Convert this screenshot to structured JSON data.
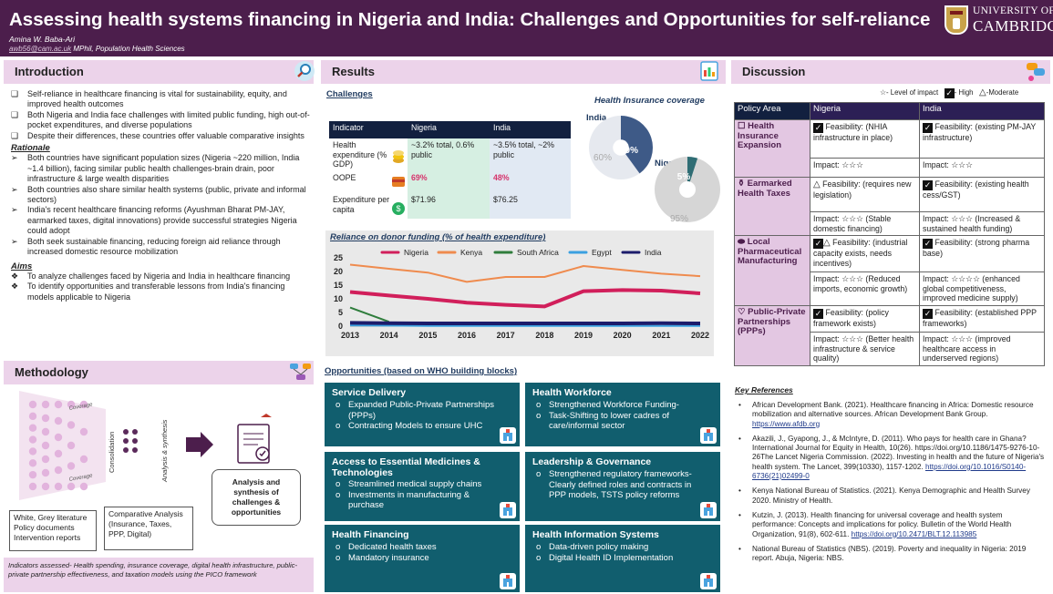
{
  "header": {
    "title": "Assessing health systems financing in Nigeria and India: Challenges and Opportunities for self-reliance",
    "author": "Amina W. Baba-Ari",
    "email": "awb56@cam.ac.uk",
    "affiliation": "MPhil, Population Health Sciences",
    "logo_line1": "UNIVERSITY OF",
    "logo_line2": "CAMBRIDGE"
  },
  "introduction": {
    "heading": "Introduction",
    "icon": "magnifier-icon",
    "bullets": [
      "Self-reliance in healthcare financing is vital for sustainability, equity, and improved health outcomes",
      "Both Nigeria and India face challenges with limited public funding, high out-of-pocket expenditures, and diverse populations",
      "Despite their differences, these countries offer valuable comparative insights"
    ],
    "rationale_heading": "Rationale",
    "rationale": [
      "Both countries have significant population sizes (Nigeria ~220 million, India ~1.4 billion), facing similar public health challenges-brain drain, poor infrastructure & large wealth disparities",
      "Both countries also share similar health systems (public, private and informal sectors)",
      "India's recent healthcare financing reforms (Ayushman Bharat PM-JAY, earmarked taxes, digital innovations) provide successful strategies Nigeria could adopt",
      "Both seek sustainable financing, reducing foreign aid reliance through increased domestic resource mobilization"
    ],
    "aims_heading": "Aims",
    "aims": [
      "To analyze challenges faced by Nigeria and India in healthcare financing",
      "To identify opportunities and transferable lessons from India's financing models applicable to Nigeria"
    ]
  },
  "methodology": {
    "heading": "Methodology",
    "coverage": "Coverage",
    "consolidation": "Consolidation",
    "analysis_synthesis": "Analysis & synthesis",
    "sources_box": [
      "White, Grey literature",
      "Policy documents",
      "Intervention reports"
    ],
    "comparative_box": "Comparative Analysis (Insurance, Taxes, PPP, Digital)",
    "output_box": "Analysis and synthesis of challenges & opportunities",
    "footer": "Indicators assessed- Health spending, insurance coverage, digital health infrastructure, public-private partnership effectiveness, and taxation models using the PICO framework"
  },
  "results": {
    "heading": "Results",
    "challenges_heading": "Challenges",
    "table": {
      "headers": [
        "Indicator",
        "Nigeria",
        "India"
      ],
      "rows": [
        {
          "indicator": "Health expenditure (% GDP)",
          "nigeria": "~3.2% total, 0.6% public",
          "india": "~3.5% total, ~2% public"
        },
        {
          "indicator": "OOPE",
          "nigeria": "69%",
          "india": "48%"
        },
        {
          "indicator": "Expenditure per capita",
          "nigeria": "$71.96",
          "india": "$76.25"
        }
      ],
      "colors": {
        "header": "#12203f",
        "nigeria": "#d6efe2",
        "india": "#e1e9f3",
        "oope": "#d6336c"
      }
    },
    "insurance": {
      "title": "Health Insurance coverage",
      "india_label": "India",
      "india_covered": "40%",
      "india_uncovered": "60%",
      "india_fraction": 0.4,
      "nigeria_label": "Nigeria",
      "nigeria_covered": "5%",
      "nigeria_uncovered": "95%",
      "nigeria_fraction": 0.05
    },
    "opportunities_heading": "Opportunities (based on WHO building blocks)",
    "opportunities": [
      {
        "title": "Service Delivery",
        "items": [
          "Expanded Public-Private Partnerships (PPPs)",
          "Contracting Models to ensure UHC"
        ],
        "icon": "hospital-icon"
      },
      {
        "title": "Health Workforce",
        "items": [
          "Strengthened Workforce Funding-",
          "Task-Shifting to lower cadres of care/informal sector"
        ],
        "icon": "doctor-icon"
      },
      {
        "title": "Access to Essential Medicines & Technologies",
        "items": [
          "Streamlined medical supply chains",
          "Investments in manufacturing & purchase"
        ],
        "icon": "pills-icon"
      },
      {
        "title": "Leadership & Governance",
        "items": [
          "Strengthened regulatory frameworks- Clearly defined roles and contracts in PPP models, TSTS policy reforms"
        ],
        "icon": "government-icon"
      },
      {
        "title": "Health Financing",
        "items": [
          "Dedicated health taxes",
          "Mandatory insurance"
        ],
        "icon": "finance-icon"
      },
      {
        "title": "Health Information Systems",
        "items": [
          "Data-driven policy making",
          "Digital Health ID Implementation"
        ],
        "icon": "monitor-icon"
      }
    ]
  },
  "chart_data": {
    "type": "line",
    "title": "Reliance on donor funding (% of health expenditure)",
    "x": [
      2013,
      2014,
      2015,
      2016,
      2017,
      2018,
      2019,
      2020,
      2021,
      2022
    ],
    "ylim": [
      0,
      25
    ],
    "yticks": [
      0,
      5,
      10,
      15,
      20,
      25
    ],
    "grid": false,
    "legend": "top",
    "series": [
      {
        "name": "Nigeria",
        "color": "#d11f5b",
        "values": [
          12.5,
          11.2,
          10,
          8.6,
          7.8,
          7.2,
          12.8,
          13.2,
          13,
          12
        ]
      },
      {
        "name": "Kenya",
        "color": "#ef8b4e",
        "values": [
          22.5,
          21,
          19.6,
          16.2,
          18,
          18,
          22,
          20.6,
          19.2,
          18.3
        ]
      },
      {
        "name": "South Africa",
        "color": "#2f7d3c",
        "values": [
          6.8,
          1.6,
          null,
          null,
          null,
          null,
          null,
          null,
          null,
          null
        ]
      },
      {
        "name": "Egypt",
        "color": "#3aa0e0",
        "values": [
          0.3,
          0.2,
          0.1,
          0.1,
          0.1,
          0.1,
          0.1,
          0.1,
          0.1,
          0.1
        ]
      },
      {
        "name": "India",
        "color": "#1c1c6b",
        "values": [
          1.2,
          1.1,
          1,
          1,
          1,
          1,
          1,
          1,
          1.1,
          1
        ]
      }
    ]
  },
  "discussion": {
    "heading": "Discussion",
    "legend": {
      "level": "- Level of impact",
      "high": "- High",
      "moderate": "-Moderate"
    },
    "headers": [
      "Policy Area",
      "Nigeria",
      "India"
    ],
    "areas": [
      {
        "name": "Health Insurance Expansion",
        "rows": [
          {
            "nigeria": "Feasibility: (NHIA infrastructure in place)",
            "india": "Feasibility: (existing PM-JAY infrastructure)"
          },
          {
            "nigeria": "Impact: ☆☆☆",
            "india": "Impact: ☆☆☆"
          }
        ]
      },
      {
        "name": "Earmarked Health Taxes",
        "rows": [
          {
            "nigeria": "Feasibility: (requires new legislation)",
            "india": "Feasibility: (existing health cess/GST)"
          },
          {
            "nigeria": "Impact: ☆☆☆ (Stable domestic financing)",
            "india": "Impact: ☆☆☆ (Increased & sustained health funding)"
          }
        ]
      },
      {
        "name": "Local Pharmaceutical Manufacturing",
        "rows": [
          {
            "nigeria": "Feasibility: (industrial capacity exists, needs incentives)",
            "india": "Feasibility: (strong pharma base)"
          },
          {
            "nigeria": "Impact: ☆☆☆ (Reduced imports, economic growth)",
            "india": "Impact: ☆☆☆☆ (enhanced global competitiveness, improved medicine supply)"
          }
        ]
      },
      {
        "name": "Public-Private Partnerships (PPPs)",
        "rows": [
          {
            "nigeria": "Feasibility: (policy framework exists)",
            "india": "Feasibility: (established PPP frameworks)"
          },
          {
            "nigeria": "Impact: ☆☆☆ (Better health infrastructure & service quality)",
            "india": "Impact: ☆☆☆ (improved healthcare access in underserved regions)"
          }
        ]
      }
    ]
  },
  "references": {
    "heading": "Key References",
    "items": [
      {
        "text": "African Development Bank. (2021). Healthcare financing in Africa: Domestic resource mobilization and alternative sources. African Development Bank Group.",
        "link": "https://www.afdb.org"
      },
      {
        "text": "Akazili, J., Gyapong, J., & McIntyre, D. (2011). Who pays for health care in Ghana? International Journal for Equity in Health, 10(26). https://doi.org/10.1186/1475-9276-10-26The Lancet Nigeria Commission. (2022). Investing in health and the future of Nigeria's health system. The Lancet, 399(10330), 1157-1202.",
        "link": "https://doi.org/10.1016/S0140-6736(21)02499-0"
      },
      {
        "text": "Kenya National Bureau of Statistics. (2021). Kenya Demographic and Health Survey 2020. Ministry of Health.",
        "link": ""
      },
      {
        "text": "Kutzin, J. (2013). Health financing for universal coverage and health system performance: Concepts and implications for policy. Bulletin of the World Health Organization, 91(8), 602-611.",
        "link": "https://doi.org/10.2471/BLT.12.113985"
      },
      {
        "text": "National Bureau of Statistics (NBS). (2019). Poverty and inequality in Nigeria: 2019 report. Abuja, Nigeria: NBS.",
        "link": ""
      }
    ]
  }
}
